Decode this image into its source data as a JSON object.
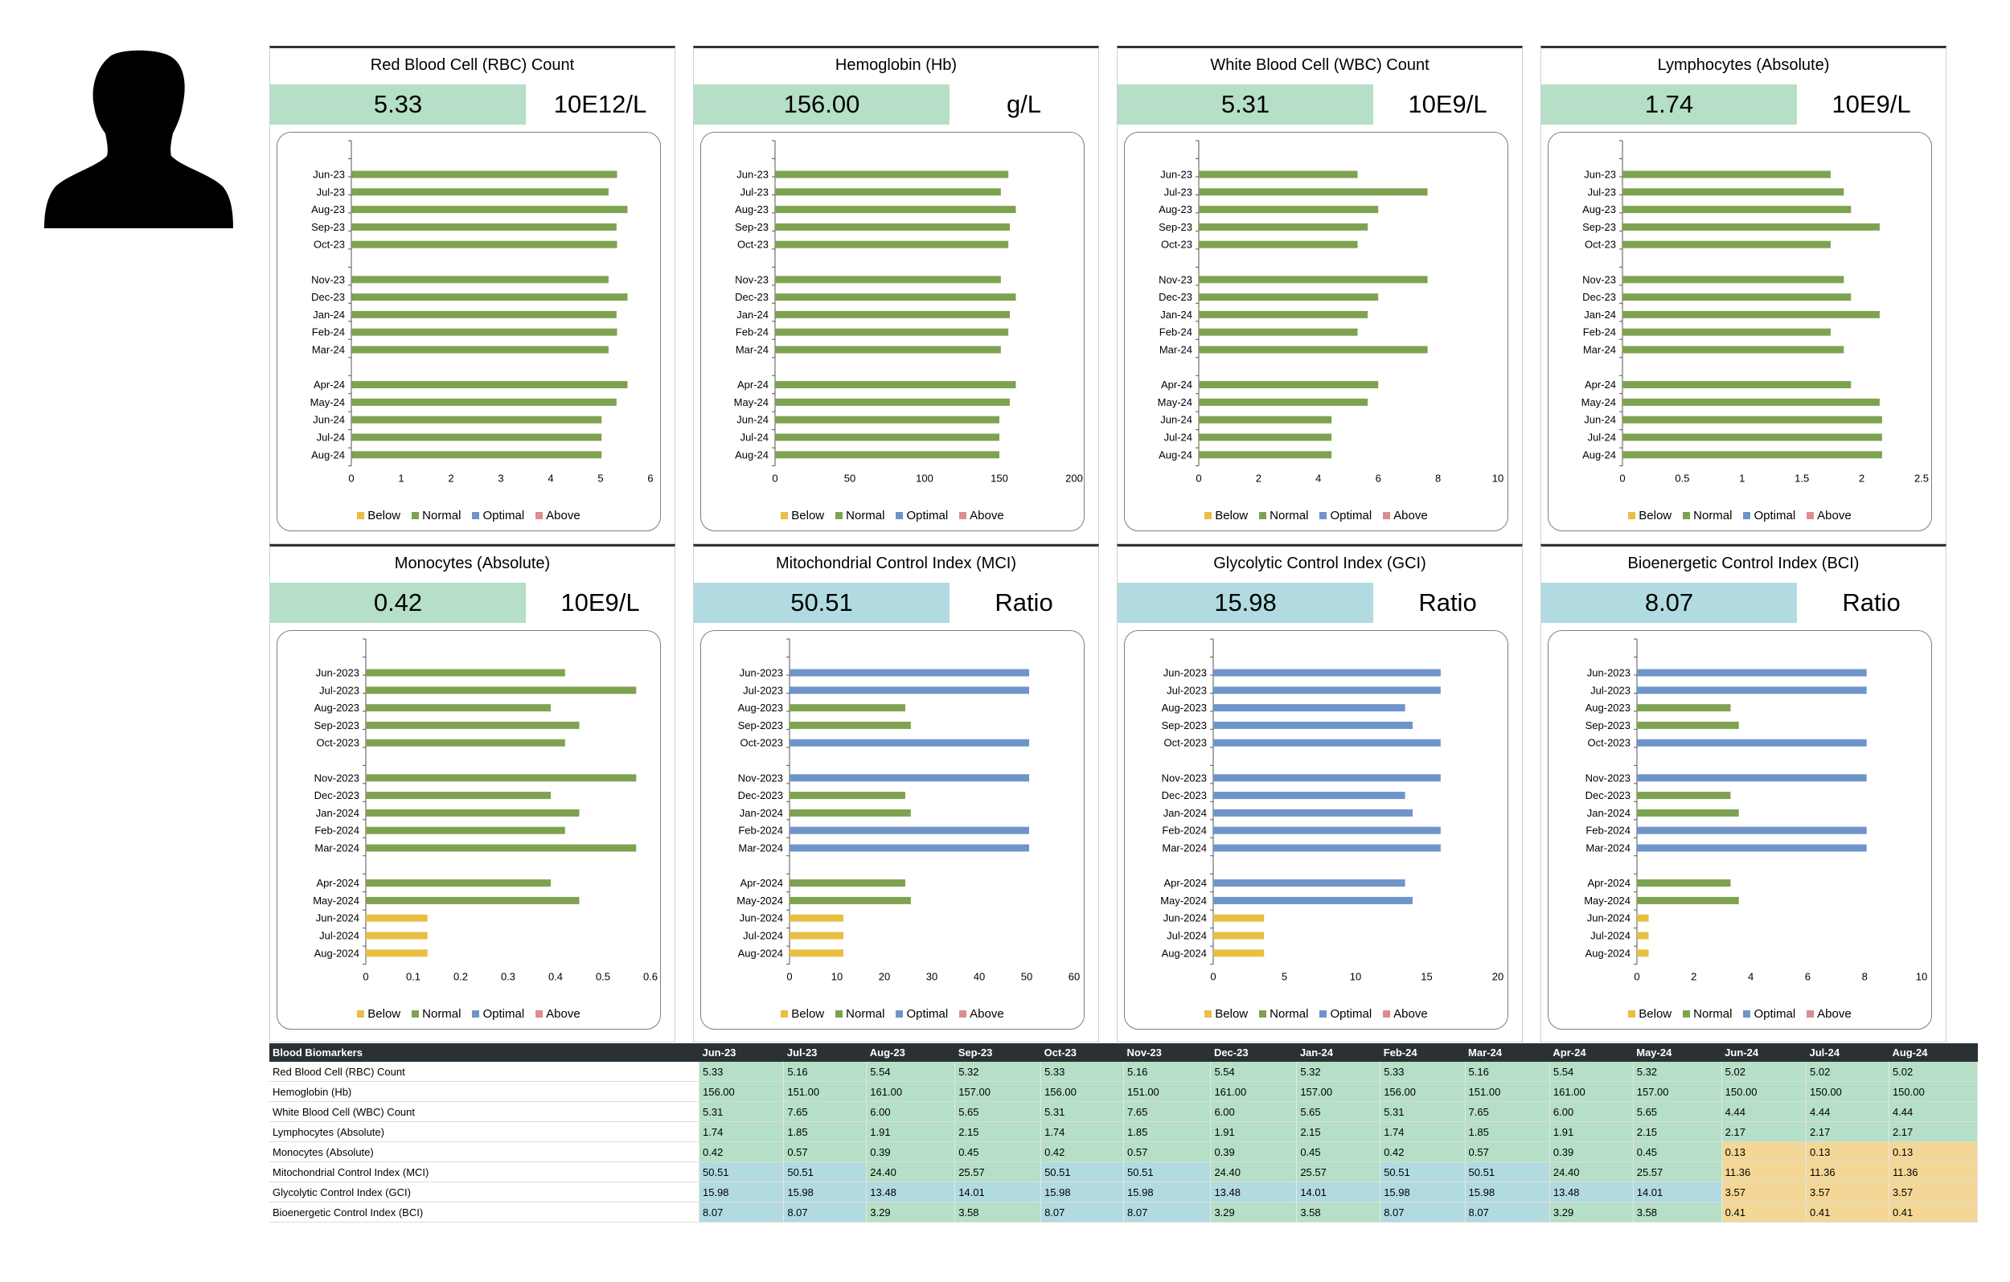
{
  "colors": {
    "below": "#e9be44",
    "normal": "#7ea350",
    "optimal": "#6e94ca",
    "above": "#dc8d8d",
    "box_normal": "#b5dfc6",
    "box_optimal": "#b1dbe0",
    "box_below": "#f4d796"
  },
  "legend": {
    "below": "Below",
    "normal": "Normal",
    "optimal": "Optimal",
    "above": "Above"
  },
  "avatar_icon": "person-silhouette-icon",
  "table": {
    "header": "Blood Biomarkers",
    "months": [
      "Jun-23",
      "Jul-23",
      "Aug-23",
      "Sep-23",
      "Oct-23",
      "Nov-23",
      "Dec-23",
      "Jan-24",
      "Feb-24",
      "Mar-24",
      "Apr-24",
      "May-24",
      "Jun-24",
      "Jul-24",
      "Aug-24"
    ],
    "rows": [
      {
        "name": "Red Blood Cell (RBC) Count",
        "values": [
          "5.33",
          "5.16",
          "5.54",
          "5.32",
          "5.33",
          "5.16",
          "5.54",
          "5.32",
          "5.33",
          "5.16",
          "5.54",
          "5.32",
          "5.02",
          "5.02",
          "5.02"
        ],
        "status": [
          "normal",
          "normal",
          "normal",
          "normal",
          "normal",
          "normal",
          "normal",
          "normal",
          "normal",
          "normal",
          "normal",
          "normal",
          "normal",
          "normal",
          "normal"
        ]
      },
      {
        "name": "Hemoglobin (Hb)",
        "values": [
          "156.00",
          "151.00",
          "161.00",
          "157.00",
          "156.00",
          "151.00",
          "161.00",
          "157.00",
          "156.00",
          "151.00",
          "161.00",
          "157.00",
          "150.00",
          "150.00",
          "150.00"
        ],
        "status": [
          "normal",
          "normal",
          "normal",
          "normal",
          "normal",
          "normal",
          "normal",
          "normal",
          "normal",
          "normal",
          "normal",
          "normal",
          "normal",
          "normal",
          "normal"
        ]
      },
      {
        "name": "White Blood Cell (WBC) Count",
        "values": [
          "5.31",
          "7.65",
          "6.00",
          "5.65",
          "5.31",
          "7.65",
          "6.00",
          "5.65",
          "5.31",
          "7.65",
          "6.00",
          "5.65",
          "4.44",
          "4.44",
          "4.44"
        ],
        "status": [
          "normal",
          "normal",
          "normal",
          "normal",
          "normal",
          "normal",
          "normal",
          "normal",
          "normal",
          "normal",
          "normal",
          "normal",
          "normal",
          "normal",
          "normal"
        ]
      },
      {
        "name": "Lymphocytes (Absolute)",
        "values": [
          "1.74",
          "1.85",
          "1.91",
          "2.15",
          "1.74",
          "1.85",
          "1.91",
          "2.15",
          "1.74",
          "1.85",
          "1.91",
          "2.15",
          "2.17",
          "2.17",
          "2.17"
        ],
        "status": [
          "normal",
          "normal",
          "normal",
          "normal",
          "normal",
          "normal",
          "normal",
          "normal",
          "normal",
          "normal",
          "normal",
          "normal",
          "normal",
          "normal",
          "normal"
        ]
      },
      {
        "name": "Monocytes (Absolute)",
        "values": [
          "0.42",
          "0.57",
          "0.39",
          "0.45",
          "0.42",
          "0.57",
          "0.39",
          "0.45",
          "0.42",
          "0.57",
          "0.39",
          "0.45",
          "0.13",
          "0.13",
          "0.13"
        ],
        "status": [
          "normal",
          "normal",
          "normal",
          "normal",
          "normal",
          "normal",
          "normal",
          "normal",
          "normal",
          "normal",
          "normal",
          "normal",
          "below",
          "below",
          "below"
        ]
      },
      {
        "name": "Mitochondrial Control Index (MCI)",
        "values": [
          "50.51",
          "50.51",
          "24.40",
          "25.57",
          "50.51",
          "50.51",
          "24.40",
          "25.57",
          "50.51",
          "50.51",
          "24.40",
          "25.57",
          "11.36",
          "11.36",
          "11.36"
        ],
        "status": [
          "optimal",
          "optimal",
          "normal",
          "normal",
          "optimal",
          "optimal",
          "normal",
          "normal",
          "optimal",
          "optimal",
          "normal",
          "normal",
          "below",
          "below",
          "below"
        ]
      },
      {
        "name": "Glycolytic Control Index (GCI)",
        "values": [
          "15.98",
          "15.98",
          "13.48",
          "14.01",
          "15.98",
          "15.98",
          "13.48",
          "14.01",
          "15.98",
          "15.98",
          "13.48",
          "14.01",
          "3.57",
          "3.57",
          "3.57"
        ],
        "status": [
          "optimal",
          "optimal",
          "optimal",
          "optimal",
          "optimal",
          "optimal",
          "optimal",
          "optimal",
          "optimal",
          "optimal",
          "optimal",
          "optimal",
          "below",
          "below",
          "below"
        ]
      },
      {
        "name": "Bioenergetic Control Index (BCI)",
        "values": [
          "8.07",
          "8.07",
          "3.29",
          "3.58",
          "8.07",
          "8.07",
          "3.29",
          "3.58",
          "8.07",
          "8.07",
          "3.29",
          "3.58",
          "0.41",
          "0.41",
          "0.41"
        ],
        "status": [
          "optimal",
          "optimal",
          "normal",
          "normal",
          "optimal",
          "optimal",
          "normal",
          "normal",
          "optimal",
          "optimal",
          "normal",
          "normal",
          "below",
          "below",
          "below"
        ]
      }
    ]
  },
  "chart_data": [
    {
      "type": "bar",
      "orientation": "horizontal",
      "title": "Red Blood Cell (RBC) Count",
      "current_value": "5.33",
      "unit": "10E12/L",
      "box_status": "normal",
      "categories": [
        "Jun-23",
        "Jul-23",
        "Aug-23",
        "Sep-23",
        "Oct-23",
        "Nov-23",
        "Dec-23",
        "Jan-24",
        "Feb-24",
        "Mar-24",
        "Apr-24",
        "May-24",
        "Jun-24",
        "Jul-24",
        "Aug-24"
      ],
      "values": [
        5.33,
        5.16,
        5.54,
        5.32,
        5.33,
        5.16,
        5.54,
        5.32,
        5.33,
        5.16,
        5.54,
        5.32,
        5.02,
        5.02,
        5.02
      ],
      "status": [
        "normal",
        "normal",
        "normal",
        "normal",
        "normal",
        "normal",
        "normal",
        "normal",
        "normal",
        "normal",
        "normal",
        "normal",
        "normal",
        "normal",
        "normal"
      ],
      "xlim": [
        0,
        6
      ],
      "xticks": [
        "0",
        "1",
        "2",
        "3",
        "4",
        "5",
        "6"
      ],
      "legend": [
        "Below",
        "Normal",
        "Optimal",
        "Above"
      ]
    },
    {
      "type": "bar",
      "orientation": "horizontal",
      "title": "Hemoglobin (Hb)",
      "current_value": "156.00",
      "unit": "g/L",
      "box_status": "normal",
      "categories": [
        "Jun-23",
        "Jul-23",
        "Aug-23",
        "Sep-23",
        "Oct-23",
        "Nov-23",
        "Dec-23",
        "Jan-24",
        "Feb-24",
        "Mar-24",
        "Apr-24",
        "May-24",
        "Jun-24",
        "Jul-24",
        "Aug-24"
      ],
      "values": [
        156,
        151,
        161,
        157,
        156,
        151,
        161,
        157,
        156,
        151,
        161,
        157,
        150,
        150,
        150
      ],
      "status": [
        "normal",
        "normal",
        "normal",
        "normal",
        "normal",
        "normal",
        "normal",
        "normal",
        "normal",
        "normal",
        "normal",
        "normal",
        "normal",
        "normal",
        "normal"
      ],
      "xlim": [
        0,
        200
      ],
      "xticks": [
        "0",
        "50",
        "100",
        "150",
        "200"
      ],
      "legend": [
        "Below",
        "Normal",
        "Optimal",
        "Above"
      ]
    },
    {
      "type": "bar",
      "orientation": "horizontal",
      "title": "White Blood Cell (WBC) Count",
      "current_value": "5.31",
      "unit": "10E9/L",
      "box_status": "normal",
      "categories": [
        "Jun-23",
        "Jul-23",
        "Aug-23",
        "Sep-23",
        "Oct-23",
        "Nov-23",
        "Dec-23",
        "Jan-24",
        "Feb-24",
        "Mar-24",
        "Apr-24",
        "May-24",
        "Jun-24",
        "Jul-24",
        "Aug-24"
      ],
      "values": [
        5.31,
        7.65,
        6.0,
        5.65,
        5.31,
        7.65,
        6.0,
        5.65,
        5.31,
        7.65,
        6.0,
        5.65,
        4.44,
        4.44,
        4.44
      ],
      "status": [
        "normal",
        "normal",
        "normal",
        "normal",
        "normal",
        "normal",
        "normal",
        "normal",
        "normal",
        "normal",
        "normal",
        "normal",
        "normal",
        "normal",
        "normal"
      ],
      "xlim": [
        0,
        10
      ],
      "xticks": [
        "0",
        "2",
        "4",
        "6",
        "8",
        "10"
      ],
      "legend": [
        "Below",
        "Normal",
        "Optimal",
        "Above"
      ]
    },
    {
      "type": "bar",
      "orientation": "horizontal",
      "title": "Lymphocytes (Absolute)",
      "current_value": "1.74",
      "unit": "10E9/L",
      "box_status": "normal",
      "categories": [
        "Jun-23",
        "Jul-23",
        "Aug-23",
        "Sep-23",
        "Oct-23",
        "Nov-23",
        "Dec-23",
        "Jan-24",
        "Feb-24",
        "Mar-24",
        "Apr-24",
        "May-24",
        "Jun-24",
        "Jul-24",
        "Aug-24"
      ],
      "values": [
        1.74,
        1.85,
        1.91,
        2.15,
        1.74,
        1.85,
        1.91,
        2.15,
        1.74,
        1.85,
        1.91,
        2.15,
        2.17,
        2.17,
        2.17
      ],
      "status": [
        "normal",
        "normal",
        "normal",
        "normal",
        "normal",
        "normal",
        "normal",
        "normal",
        "normal",
        "normal",
        "normal",
        "normal",
        "normal",
        "normal",
        "normal"
      ],
      "xlim": [
        0,
        2.5
      ],
      "xticks": [
        "0",
        "0.5",
        "1",
        "1.5",
        "2",
        "2.5"
      ],
      "legend": [
        "Below",
        "Normal",
        "Optimal",
        "Above"
      ]
    },
    {
      "type": "bar",
      "orientation": "horizontal",
      "title": "Monocytes (Absolute)",
      "current_value": "0.42",
      "unit": "10E9/L",
      "box_status": "normal",
      "categories": [
        "Jun-2023",
        "Jul-2023",
        "Aug-2023",
        "Sep-2023",
        "Oct-2023",
        "Nov-2023",
        "Dec-2023",
        "Jan-2024",
        "Feb-2024",
        "Mar-2024",
        "Apr-2024",
        "May-2024",
        "Jun-2024",
        "Jul-2024",
        "Aug-2024"
      ],
      "values": [
        0.42,
        0.57,
        0.39,
        0.45,
        0.42,
        0.57,
        0.39,
        0.45,
        0.42,
        0.57,
        0.39,
        0.45,
        0.13,
        0.13,
        0.13
      ],
      "status": [
        "normal",
        "normal",
        "normal",
        "normal",
        "normal",
        "normal",
        "normal",
        "normal",
        "normal",
        "normal",
        "normal",
        "normal",
        "below",
        "below",
        "below"
      ],
      "xlim": [
        0,
        0.6
      ],
      "xticks": [
        "0",
        "0.1",
        "0.2",
        "0.3",
        "0.4",
        "0.5",
        "0.6"
      ],
      "legend": [
        "Below",
        "Normal",
        "Optimal",
        "Above"
      ]
    },
    {
      "type": "bar",
      "orientation": "horizontal",
      "title": "Mitochondrial Control Index (MCI)",
      "current_value": "50.51",
      "unit": "Ratio",
      "box_status": "optimal",
      "categories": [
        "Jun-2023",
        "Jul-2023",
        "Aug-2023",
        "Sep-2023",
        "Oct-2023",
        "Nov-2023",
        "Dec-2023",
        "Jan-2024",
        "Feb-2024",
        "Mar-2024",
        "Apr-2024",
        "May-2024",
        "Jun-2024",
        "Jul-2024",
        "Aug-2024"
      ],
      "values": [
        50.51,
        50.51,
        24.4,
        25.57,
        50.51,
        50.51,
        24.4,
        25.57,
        50.51,
        50.51,
        24.4,
        25.57,
        11.36,
        11.36,
        11.36
      ],
      "status": [
        "optimal",
        "optimal",
        "normal",
        "normal",
        "optimal",
        "optimal",
        "normal",
        "normal",
        "optimal",
        "optimal",
        "normal",
        "normal",
        "below",
        "below",
        "below"
      ],
      "xlim": [
        0,
        60
      ],
      "xticks": [
        "0",
        "10",
        "20",
        "30",
        "40",
        "50",
        "60"
      ],
      "legend": [
        "Below",
        "Normal",
        "Optimal",
        "Above"
      ]
    },
    {
      "type": "bar",
      "orientation": "horizontal",
      "title": "Glycolytic Control Index (GCI)",
      "current_value": "15.98",
      "unit": "Ratio",
      "box_status": "optimal",
      "categories": [
        "Jun-2023",
        "Jul-2023",
        "Aug-2023",
        "Sep-2023",
        "Oct-2023",
        "Nov-2023",
        "Dec-2023",
        "Jan-2024",
        "Feb-2024",
        "Mar-2024",
        "Apr-2024",
        "May-2024",
        "Jun-2024",
        "Jul-2024",
        "Aug-2024"
      ],
      "values": [
        15.98,
        15.98,
        13.48,
        14.01,
        15.98,
        15.98,
        13.48,
        14.01,
        15.98,
        15.98,
        13.48,
        14.01,
        3.57,
        3.57,
        3.57
      ],
      "status": [
        "optimal",
        "optimal",
        "optimal",
        "optimal",
        "optimal",
        "optimal",
        "optimal",
        "optimal",
        "optimal",
        "optimal",
        "optimal",
        "optimal",
        "below",
        "below",
        "below"
      ],
      "xlim": [
        0,
        20
      ],
      "xticks": [
        "0",
        "5",
        "10",
        "15",
        "20"
      ],
      "legend": [
        "Below",
        "Normal",
        "Optimal",
        "Above"
      ]
    },
    {
      "type": "bar",
      "orientation": "horizontal",
      "title": "Bioenergetic Control Index (BCI)",
      "current_value": "8.07",
      "unit": "Ratio",
      "box_status": "optimal",
      "categories": [
        "Jun-2023",
        "Jul-2023",
        "Aug-2023",
        "Sep-2023",
        "Oct-2023",
        "Nov-2023",
        "Dec-2023",
        "Jan-2024",
        "Feb-2024",
        "Mar-2024",
        "Apr-2024",
        "May-2024",
        "Jun-2024",
        "Jul-2024",
        "Aug-2024"
      ],
      "values": [
        8.07,
        8.07,
        3.29,
        3.58,
        8.07,
        8.07,
        3.29,
        3.58,
        8.07,
        8.07,
        3.29,
        3.58,
        0.41,
        0.41,
        0.41
      ],
      "status": [
        "optimal",
        "optimal",
        "normal",
        "normal",
        "optimal",
        "optimal",
        "normal",
        "normal",
        "optimal",
        "optimal",
        "normal",
        "normal",
        "below",
        "below",
        "below"
      ],
      "xlim": [
        0,
        10
      ],
      "xticks": [
        "0",
        "2",
        "4",
        "6",
        "8",
        "10"
      ],
      "legend": [
        "Below",
        "Normal",
        "Optimal",
        "Above"
      ]
    }
  ]
}
